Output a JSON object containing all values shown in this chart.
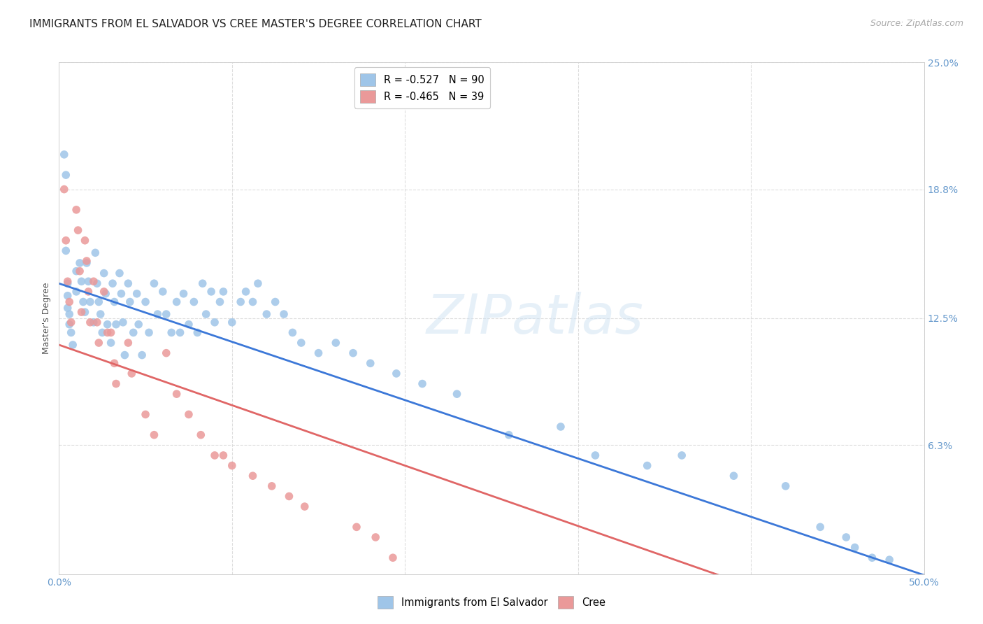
{
  "title": "IMMIGRANTS FROM EL SALVADOR VS CREE MASTER'S DEGREE CORRELATION CHART",
  "source": "Source: ZipAtlas.com",
  "ylabel": "Master's Degree",
  "watermark": "ZIPatlas",
  "xlim": [
    0.0,
    0.5
  ],
  "ylim": [
    0.0,
    0.25
  ],
  "xticks": [
    0.0,
    0.1,
    0.2,
    0.3,
    0.4,
    0.5
  ],
  "xticklabels": [
    "0.0%",
    "",
    "",
    "",
    "",
    "50.0%"
  ],
  "yticks": [
    0.0,
    0.063,
    0.125,
    0.188,
    0.25
  ],
  "right_yticklabels": [
    "",
    "6.3%",
    "12.5%",
    "18.8%",
    "25.0%"
  ],
  "blue_color": "#9fc5e8",
  "pink_color": "#ea9999",
  "blue_line_color": "#3c78d8",
  "pink_line_color": "#e06666",
  "legend_blue_label": "R = -0.527   N = 90",
  "legend_pink_label": "R = -0.465   N = 39",
  "legend_series1": "Immigrants from El Salvador",
  "legend_series2": "Cree",
  "blue_intercept": 0.142,
  "blue_slope": -0.285,
  "pink_intercept": 0.112,
  "pink_slope": -0.295,
  "pink_line_solid_end": 0.4,
  "pink_line_dashed_end": 0.5,
  "blue_scatter_x": [
    0.003,
    0.004,
    0.004,
    0.005,
    0.005,
    0.005,
    0.006,
    0.006,
    0.007,
    0.008,
    0.01,
    0.01,
    0.012,
    0.013,
    0.014,
    0.015,
    0.016,
    0.017,
    0.018,
    0.02,
    0.021,
    0.022,
    0.023,
    0.024,
    0.025,
    0.026,
    0.027,
    0.028,
    0.03,
    0.031,
    0.032,
    0.033,
    0.035,
    0.036,
    0.037,
    0.038,
    0.04,
    0.041,
    0.043,
    0.045,
    0.046,
    0.048,
    0.05,
    0.052,
    0.055,
    0.057,
    0.06,
    0.062,
    0.065,
    0.068,
    0.07,
    0.072,
    0.075,
    0.078,
    0.08,
    0.083,
    0.085,
    0.088,
    0.09,
    0.093,
    0.095,
    0.1,
    0.105,
    0.108,
    0.112,
    0.115,
    0.12,
    0.125,
    0.13,
    0.135,
    0.14,
    0.15,
    0.16,
    0.17,
    0.18,
    0.195,
    0.21,
    0.23,
    0.26,
    0.29,
    0.31,
    0.34,
    0.36,
    0.39,
    0.42,
    0.44,
    0.455,
    0.46,
    0.47,
    0.48
  ],
  "blue_scatter_y": [
    0.205,
    0.158,
    0.195,
    0.142,
    0.136,
    0.13,
    0.127,
    0.122,
    0.118,
    0.112,
    0.148,
    0.138,
    0.152,
    0.143,
    0.133,
    0.128,
    0.152,
    0.143,
    0.133,
    0.123,
    0.157,
    0.142,
    0.133,
    0.127,
    0.118,
    0.147,
    0.137,
    0.122,
    0.113,
    0.142,
    0.133,
    0.122,
    0.147,
    0.137,
    0.123,
    0.107,
    0.142,
    0.133,
    0.118,
    0.137,
    0.122,
    0.107,
    0.133,
    0.118,
    0.142,
    0.127,
    0.138,
    0.127,
    0.118,
    0.133,
    0.118,
    0.137,
    0.122,
    0.133,
    0.118,
    0.142,
    0.127,
    0.138,
    0.123,
    0.133,
    0.138,
    0.123,
    0.133,
    0.138,
    0.133,
    0.142,
    0.127,
    0.133,
    0.127,
    0.118,
    0.113,
    0.108,
    0.113,
    0.108,
    0.103,
    0.098,
    0.093,
    0.088,
    0.068,
    0.072,
    0.058,
    0.053,
    0.058,
    0.048,
    0.043,
    0.023,
    0.018,
    0.013,
    0.008,
    0.007
  ],
  "pink_scatter_x": [
    0.003,
    0.004,
    0.005,
    0.006,
    0.007,
    0.01,
    0.011,
    0.012,
    0.013,
    0.015,
    0.016,
    0.017,
    0.018,
    0.02,
    0.022,
    0.023,
    0.026,
    0.028,
    0.03,
    0.032,
    0.033,
    0.04,
    0.042,
    0.05,
    0.055,
    0.062,
    0.068,
    0.075,
    0.082,
    0.09,
    0.095,
    0.1,
    0.112,
    0.123,
    0.133,
    0.142,
    0.172,
    0.183,
    0.193
  ],
  "pink_scatter_y": [
    0.188,
    0.163,
    0.143,
    0.133,
    0.123,
    0.178,
    0.168,
    0.148,
    0.128,
    0.163,
    0.153,
    0.138,
    0.123,
    0.143,
    0.123,
    0.113,
    0.138,
    0.118,
    0.118,
    0.103,
    0.093,
    0.113,
    0.098,
    0.078,
    0.068,
    0.108,
    0.088,
    0.078,
    0.068,
    0.058,
    0.058,
    0.053,
    0.048,
    0.043,
    0.038,
    0.033,
    0.023,
    0.018,
    0.008
  ],
  "axis_color": "#cccccc",
  "tick_color": "#6699cc",
  "grid_color": "#dddddd",
  "background_color": "#ffffff",
  "title_fontsize": 11,
  "source_fontsize": 9,
  "axis_label_fontsize": 9,
  "tick_fontsize": 10
}
